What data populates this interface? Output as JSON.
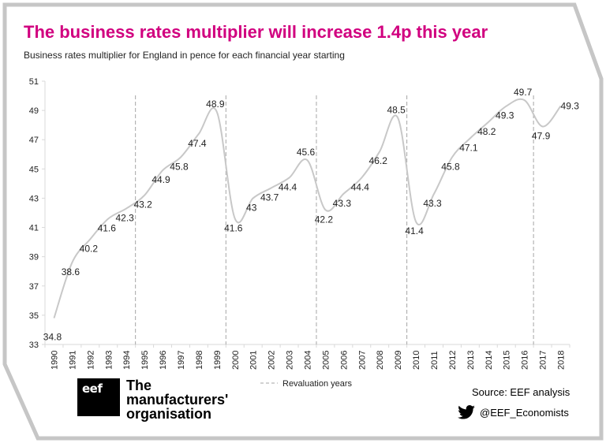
{
  "header": {
    "title": "The business rates multiplier will increase 1.4p this year",
    "subtitle": "Business rates multiplier for England in pence for each financial year starting"
  },
  "footer": {
    "org_line1": "The",
    "org_line2": "manufacturers'",
    "org_line3": "organisation",
    "logo_text": "eef",
    "source": "Source: EEF analysis",
    "twitter_handle": "@EEF_Economists"
  },
  "colors": {
    "title": "#d1007f",
    "line": "#c8c8c8",
    "highlight": "#d1007f",
    "revaluation": "#a6a6a6"
  },
  "chart_data": {
    "type": "line",
    "x": [
      1990,
      1991,
      1992,
      1993,
      1994,
      1995,
      1996,
      1997,
      1998,
      1999,
      2000,
      2001,
      2002,
      2003,
      2004,
      2005,
      2006,
      2007,
      2008,
      2009,
      2010,
      2011,
      2012,
      2013,
      2014,
      2015,
      2016,
      2017,
      2018
    ],
    "y": [
      34.8,
      38.6,
      40.2,
      41.6,
      42.3,
      43.2,
      44.9,
      45.8,
      47.4,
      48.9,
      41.6,
      43,
      43.7,
      44.4,
      45.6,
      42.2,
      43.3,
      44.4,
      46.2,
      48.5,
      41.4,
      43.3,
      45.8,
      47.1,
      48.2,
      49.3,
      49.7,
      47.9,
      49.3
    ],
    "labels": [
      "34.8",
      "38.6",
      "40.2",
      "41.6",
      "42.3",
      "43.2",
      "44.9",
      "45.8",
      "47.4",
      "48.9",
      "41.6",
      "43",
      "43.7",
      "44.4",
      "45.6",
      "42.2",
      "43.3",
      "44.4",
      "46.2",
      "48.5",
      "41.4",
      "43.3",
      "45.8",
      "47.1",
      "48.2",
      "49.3",
      "49.7",
      "47.9",
      "49.3"
    ],
    "highlight_index": 28,
    "ylim": [
      33,
      51
    ],
    "yticks": [
      33,
      35,
      37,
      39,
      41,
      43,
      45,
      47,
      49,
      51
    ],
    "revaluation_years": [
      1995,
      2000,
      2005,
      2010,
      2017
    ],
    "legend": {
      "label": "Revaluation years",
      "placement": "bottom"
    },
    "grid": false
  }
}
